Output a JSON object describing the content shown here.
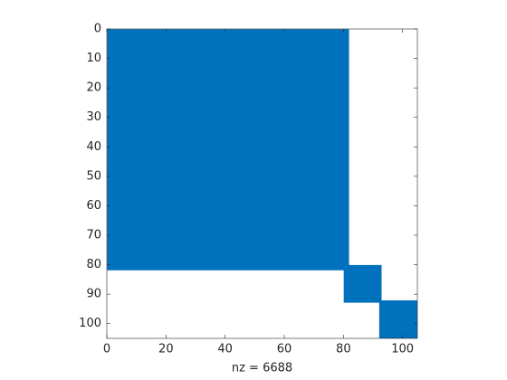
{
  "chart_data": {
    "type": "spy",
    "xlabel": "nz = 6688",
    "color": "#0072bd",
    "blocks": [
      {
        "rows": [
          1,
          81
        ],
        "cols": [
          1,
          81
        ]
      },
      {
        "rows": [
          81,
          92
        ],
        "cols": [
          81,
          92
        ]
      },
      {
        "rows": [
          93,
          105
        ],
        "cols": [
          93,
          105
        ]
      }
    ],
    "xlim": [
      0,
      105
    ],
    "ylim": [
      0,
      105
    ],
    "xticks": [
      0,
      20,
      40,
      60,
      80,
      100
    ],
    "yticks": [
      0,
      10,
      20,
      30,
      40,
      50,
      60,
      70,
      80,
      90,
      100
    ],
    "yreverse": true
  }
}
